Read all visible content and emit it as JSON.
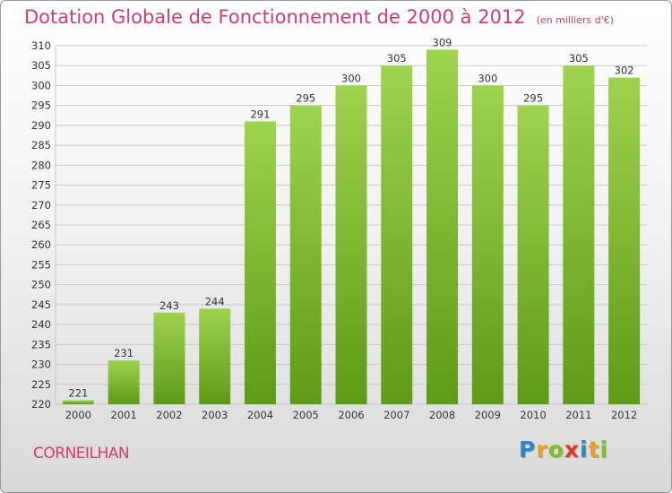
{
  "header": {
    "title": "Dotation Globale de Fonctionnement de 2000 à 2012",
    "subtitle": "(en milliers d'€)"
  },
  "footer": {
    "commune": "CORNEILHAN",
    "logo_letters": [
      "P",
      "r",
      "o",
      "x",
      "i",
      "t",
      "i"
    ],
    "logo_colors": [
      "#2e86c8",
      "#e8a020",
      "#7cbf2a",
      "#d93a2a",
      "#2e86c8",
      "#e8a020",
      "#7cbf2a"
    ]
  },
  "colors": {
    "bar_top": "#9fd24f",
    "bar_bottom": "#5e9b16",
    "title": "#d03c6f"
  },
  "chart_data": {
    "type": "bar",
    "title": "Dotation Globale de Fonctionnement de 2000 à 2012",
    "subtitle": "(en milliers d'€)",
    "categories": [
      "2000",
      "2001",
      "2002",
      "2003",
      "2004",
      "2005",
      "2006",
      "2007",
      "2008",
      "2009",
      "2010",
      "2011",
      "2012"
    ],
    "values": [
      221,
      231,
      243,
      244,
      291,
      295,
      300,
      305,
      309,
      300,
      295,
      305,
      302
    ],
    "ylim": [
      220,
      310
    ],
    "yticks": [
      220,
      225,
      230,
      235,
      240,
      245,
      250,
      255,
      260,
      265,
      270,
      275,
      280,
      285,
      290,
      295,
      300,
      305,
      310
    ],
    "grid": true
  }
}
